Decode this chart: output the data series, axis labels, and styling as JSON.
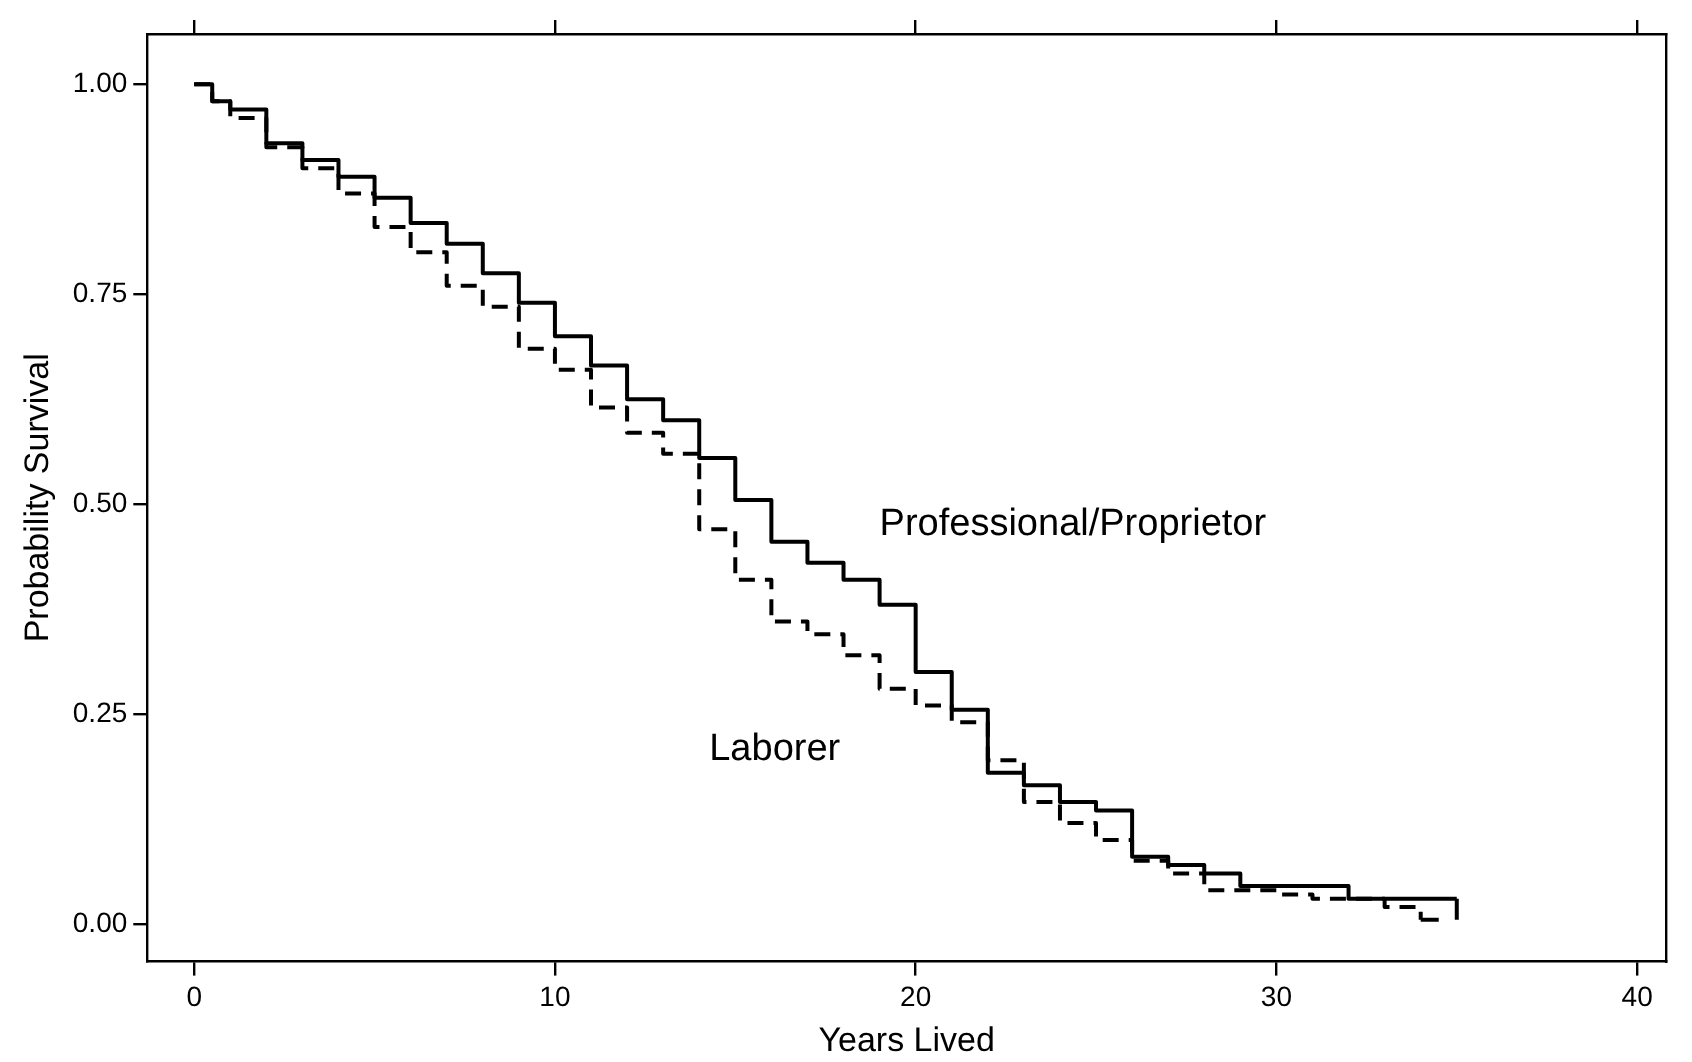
{
  "chart_data": {
    "type": "step",
    "xlabel": "Years Lived",
    "ylabel": "Probability Survival",
    "xlim": [
      -1.3,
      40.8
    ],
    "xticks": [
      0,
      10,
      20,
      30,
      40
    ],
    "ylim": [
      -0.045,
      1.06
    ],
    "yticks": [
      {
        "value": 0,
        "label": "0.00"
      },
      {
        "value": 0.25,
        "label": "0.25"
      },
      {
        "value": 0.5,
        "label": "0.50"
      },
      {
        "value": 0.75,
        "label": "0.75"
      },
      {
        "value": 1,
        "label": "1.00"
      }
    ],
    "grid": false,
    "legend": false,
    "marker": "none",
    "series": [
      {
        "name": "Professional/Proprietor",
        "color": "#000000",
        "line_style": "solid",
        "x": [
          0,
          0.5,
          1,
          2,
          3,
          4,
          5,
          6,
          7,
          8,
          9,
          10,
          11,
          12,
          13,
          14,
          15,
          16,
          17,
          18,
          19,
          20,
          21,
          22,
          23,
          24,
          25,
          26,
          27,
          28,
          29,
          32,
          35,
          35
        ],
        "values": [
          1.0,
          0.98,
          0.97,
          0.93,
          0.91,
          0.89,
          0.865,
          0.835,
          0.81,
          0.775,
          0.74,
          0.7,
          0.665,
          0.625,
          0.6,
          0.555,
          0.505,
          0.455,
          0.43,
          0.41,
          0.38,
          0.3,
          0.255,
          0.18,
          0.165,
          0.145,
          0.135,
          0.08,
          0.07,
          0.06,
          0.045,
          0.03,
          0.03,
          0.005
        ]
      },
      {
        "name": "Laborer",
        "color": "#000000",
        "line_style": "dashed",
        "x": [
          0,
          0.5,
          1,
          2,
          3,
          4,
          5,
          6,
          7,
          8,
          9,
          10,
          11,
          12,
          13,
          14,
          15,
          16,
          17,
          18,
          19,
          20,
          21,
          22,
          23,
          24,
          25,
          26,
          27,
          28,
          30,
          31,
          33,
          34,
          34.5
        ],
        "values": [
          1.0,
          0.98,
          0.96,
          0.925,
          0.9,
          0.87,
          0.83,
          0.8,
          0.76,
          0.735,
          0.685,
          0.66,
          0.615,
          0.585,
          0.56,
          0.47,
          0.41,
          0.36,
          0.345,
          0.32,
          0.28,
          0.26,
          0.24,
          0.195,
          0.145,
          0.12,
          0.1,
          0.075,
          0.06,
          0.04,
          0.035,
          0.03,
          0.02,
          0.005,
          0.005
        ]
      }
    ]
  }
}
